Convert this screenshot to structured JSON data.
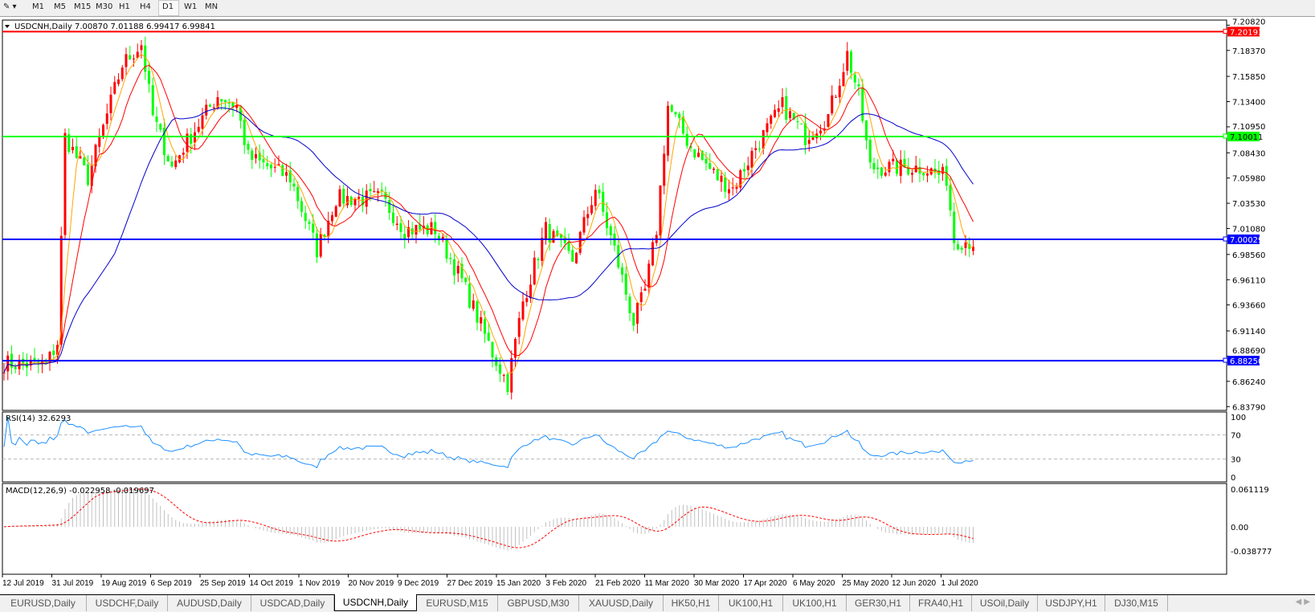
{
  "toolbar": {
    "timeframes": [
      "M1",
      "M5",
      "M15",
      "M30",
      "H1",
      "H4",
      "D1",
      "W1",
      "MN"
    ],
    "active": "D1"
  },
  "chart": {
    "header": "USDCNH,Daily  7.00870 7.01188 6.99417 6.99841",
    "rsi_label": "RSI(14) 32.6293",
    "macd_label": "MACD(12,26,9) -0.022958 -0.019697",
    "colors": {
      "bull": "#ff0000",
      "bear": "#00ff00",
      "ma_fast": "#ffa500",
      "ma_mid": "#ff0000",
      "ma_slow": "#0000cc",
      "rsi": "#1e90ff",
      "macd_hist": "#c0c0c0",
      "macd_signal": "#ff0000"
    }
  },
  "chart_data": {
    "type": "candlestick",
    "symbol": "USDCNH",
    "timeframe": "Daily",
    "price_ticks": [
      "7.20820",
      "7.18370",
      "7.15850",
      "7.13400",
      "7.10950",
      "7.08430",
      "7.05980",
      "7.03530",
      "7.01080",
      "6.98560",
      "6.96110",
      "6.93660",
      "6.91140",
      "6.88690",
      "6.86240",
      "6.83790"
    ],
    "horizontal_lines": [
      {
        "label": "7.20193",
        "price": 7.20193,
        "color": "#ff0000"
      },
      {
        "label": "7.10011",
        "price": 7.10011,
        "color": "#00ff00"
      },
      {
        "label": "7.00029",
        "price": 7.00029,
        "color": "#0000ff"
      },
      {
        "label": "6.88250",
        "price": 6.8825,
        "color": "#0000ff"
      }
    ],
    "date_ticks": [
      "12 Jul 2019",
      "31 Jul 2019",
      "19 Aug 2019",
      "6 Sep 2019",
      "25 Sep 2019",
      "14 Oct 2019",
      "1 Nov 2019",
      "20 Nov 2019",
      "9 Dec 2019",
      "27 Dec 2019",
      "15 Jan 2020",
      "3 Feb 2020",
      "21 Feb 2020",
      "11 Mar 2020",
      "30 Mar 2020",
      "17 Apr 2020",
      "6 May 2020",
      "25 May 2020",
      "12 Jun 2020",
      "1 Jul 2020"
    ],
    "close_keypoints": [
      [
        0,
        6.88
      ],
      [
        11,
        6.878
      ],
      [
        14,
        6.9
      ],
      [
        16,
        7.1
      ],
      [
        22,
        7.06
      ],
      [
        31,
        7.17
      ],
      [
        36,
        7.19
      ],
      [
        39,
        7.12
      ],
      [
        44,
        7.07
      ],
      [
        47,
        7.09
      ],
      [
        56,
        7.14
      ],
      [
        61,
        7.13
      ],
      [
        64,
        7.08
      ],
      [
        75,
        7.06
      ],
      [
        82,
        6.99
      ],
      [
        87,
        7.04
      ],
      [
        99,
        7.04
      ],
      [
        105,
        7.01
      ],
      [
        113,
        7.01
      ],
      [
        120,
        6.96
      ],
      [
        128,
        6.89
      ],
      [
        132,
        6.86
      ],
      [
        136,
        6.94
      ],
      [
        142,
        7.01
      ],
      [
        149,
        6.98
      ],
      [
        155,
        7.05
      ],
      [
        160,
        6.99
      ],
      [
        165,
        6.92
      ],
      [
        168,
        6.95
      ],
      [
        171,
        7.01
      ],
      [
        174,
        7.13
      ],
      [
        180,
        7.09
      ],
      [
        187,
        7.06
      ],
      [
        191,
        7.05
      ],
      [
        197,
        7.09
      ],
      [
        204,
        7.13
      ],
      [
        210,
        7.1
      ],
      [
        216,
        7.12
      ],
      [
        221,
        7.18
      ],
      [
        224,
        7.14
      ],
      [
        227,
        7.07
      ],
      [
        233,
        7.07
      ],
      [
        241,
        7.07
      ],
      [
        247,
        7.06
      ],
      [
        249,
        7.0
      ],
      [
        254,
        6.998
      ]
    ],
    "rsi": {
      "period": 14,
      "value": 32.6293,
      "ticks": [
        "100",
        "70",
        "30",
        "0"
      ],
      "levels": [
        70,
        30
      ]
    },
    "macd": {
      "params": "12,26,9",
      "main": -0.022958,
      "signal": -0.019697,
      "ticks": [
        "0.061119",
        "0.00",
        "-0.038777"
      ]
    }
  },
  "tabs": [
    "EURUSD,Daily",
    "USDCHF,Daily",
    "AUDUSD,Daily",
    "USDCAD,Daily",
    "USDCNH,Daily",
    "EURUSD,M15",
    "GBPUSD,M30",
    "XAUUSD,Daily",
    "HK50,H1",
    "UK100,H1",
    "UK100,H1",
    "GER30,H1",
    "FRA40,H1",
    "USOil,Daily",
    "USDJPY,H1",
    "DJ30,M15"
  ],
  "active_tab": "USDCNH,Daily"
}
